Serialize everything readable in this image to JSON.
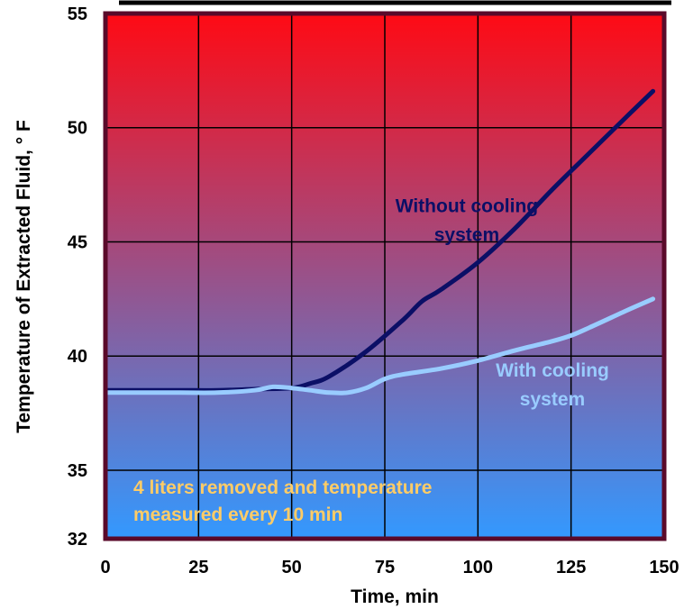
{
  "chart_data": {
    "type": "line",
    "title": "",
    "xlabel": "Time, min",
    "ylabel": "Temperature of Extracted Fluid, ° F",
    "xlim": [
      0,
      150
    ],
    "ylim": [
      32,
      55
    ],
    "x_ticks": [
      0,
      25,
      50,
      75,
      100,
      125,
      150
    ],
    "y_ticks": [
      32,
      35,
      40,
      45,
      50,
      55
    ],
    "grid": true,
    "background_gradient": {
      "top": "#ff0a14",
      "bottom": "#3399ff"
    },
    "series": [
      {
        "name": "Without cooling system",
        "color": "#0b0f66",
        "label_lines": [
          "Without cooling",
          "system"
        ],
        "label_at": [
          97,
          46.3
        ],
        "x": [
          0,
          10,
          20,
          30,
          40,
          50,
          55,
          60,
          70,
          80,
          85,
          90,
          100,
          110,
          120,
          130,
          140,
          147
        ],
        "y": [
          38.5,
          38.5,
          38.5,
          38.5,
          38.55,
          38.6,
          38.8,
          39.1,
          40.2,
          41.6,
          42.4,
          42.9,
          44.1,
          45.6,
          47.3,
          48.9,
          50.5,
          51.6
        ]
      },
      {
        "name": "With cooling system",
        "color": "#99ccff",
        "label_lines": [
          "With cooling",
          "system"
        ],
        "label_at": [
          120,
          39.1
        ],
        "x": [
          0,
          10,
          20,
          30,
          40,
          45,
          50,
          55,
          60,
          65,
          70,
          75,
          80,
          90,
          100,
          110,
          120,
          125,
          130,
          140,
          147
        ],
        "y": [
          38.4,
          38.4,
          38.4,
          38.4,
          38.5,
          38.65,
          38.6,
          38.5,
          38.4,
          38.4,
          38.6,
          39.0,
          39.2,
          39.45,
          39.8,
          40.25,
          40.65,
          40.9,
          41.25,
          42.0,
          42.5
        ]
      }
    ],
    "annotation": {
      "lines": [
        "4  liters removed and temperature",
        "measured every 10 min"
      ],
      "color": "#ffcc66"
    }
  }
}
